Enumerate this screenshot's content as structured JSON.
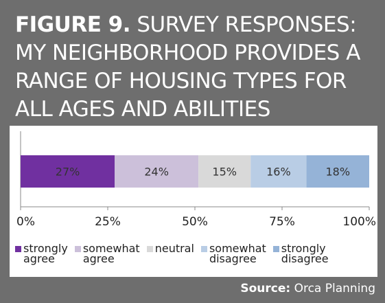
{
  "title": {
    "figure_label": "FIGURE 9.",
    "text": "SURVEY RESPONSES: MY NEIGHBORHOOD PROVIDES A RANGE OF HOUSING TYPES FOR ALL AGES AND ABILITIES"
  },
  "source": {
    "label": "Source:",
    "value": "Orca Planning"
  },
  "chart_data": {
    "type": "bar",
    "orientation": "horizontal",
    "stacked": true,
    "categories": [
      ""
    ],
    "series": [
      {
        "name": "strongly agree",
        "values": [
          27
        ],
        "label": "27%",
        "color": "#7030a0"
      },
      {
        "name": "somewhat agree",
        "values": [
          24
        ],
        "label": "24%",
        "color": "#ccc0da"
      },
      {
        "name": "neutral",
        "values": [
          15
        ],
        "label": "15%",
        "color": "#d9d9d9"
      },
      {
        "name": "somewhat disagree",
        "values": [
          16
        ],
        "label": "16%",
        "color": "#b9cde5"
      },
      {
        "name": "strongly disagree",
        "values": [
          18
        ],
        "label": "18%",
        "color": "#95b3d7"
      }
    ],
    "xlim": [
      0,
      100
    ],
    "xticks": [
      "0%",
      "25%",
      "50%",
      "75%",
      "100%"
    ],
    "legend_position": "bottom",
    "grid": false
  },
  "legend": [
    {
      "label": "strongly\nagree",
      "color": "#7030a0"
    },
    {
      "label": "somewhat\nagree",
      "color": "#ccc0da"
    },
    {
      "label": "neutral",
      "color": "#d9d9d9"
    },
    {
      "label": "somewhat\ndisagree",
      "color": "#b9cde5"
    },
    {
      "label": "strongly\ndisagree",
      "color": "#95b3d7"
    }
  ]
}
